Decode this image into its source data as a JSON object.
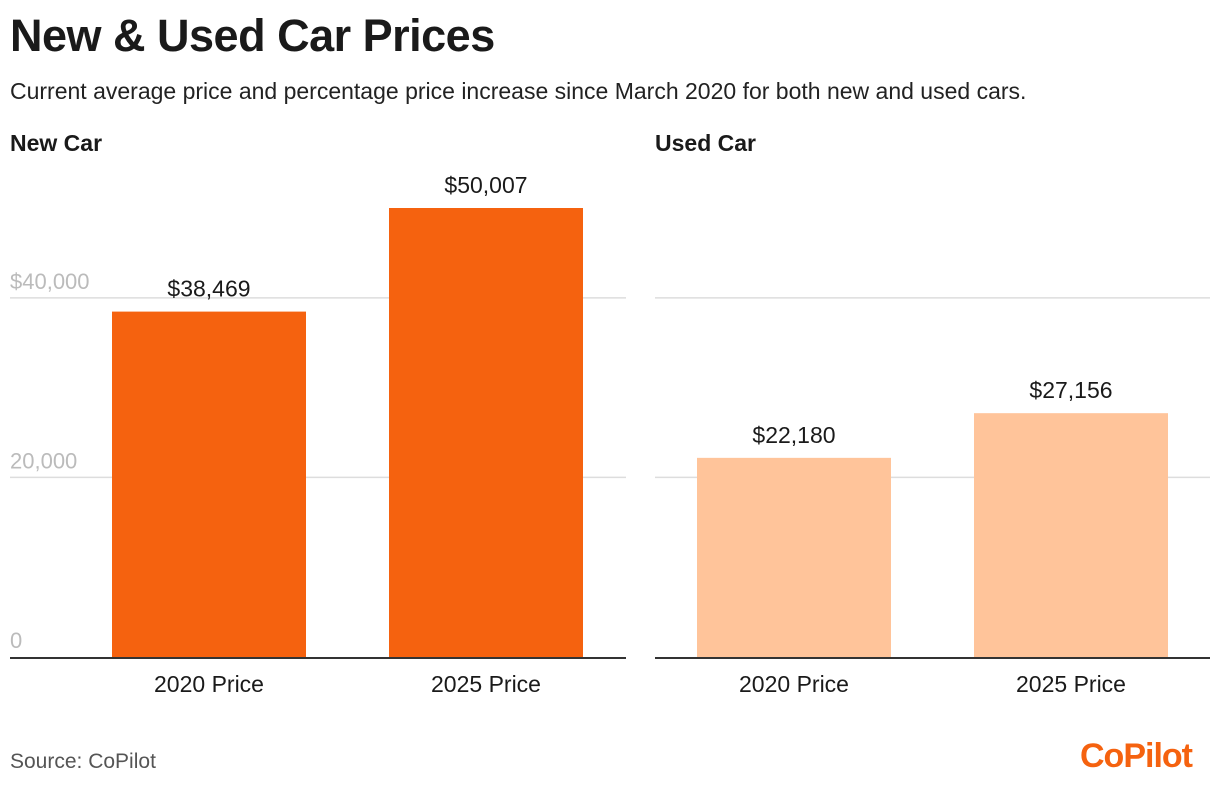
{
  "title": "New & Used Car Prices",
  "subtitle": "Current average price and percentage price increase since March 2020 for both new and used cars.",
  "source": "Source: CoPilot",
  "logo_text": "CoPilot",
  "colors": {
    "new_bar": "#F5620F",
    "used_bar": "#FFC49A",
    "grid": "#dddddd",
    "axis": "#333333",
    "tick": "#bbbbbb",
    "logo": "#F5620F"
  },
  "chart_data": [
    {
      "type": "bar",
      "title": "New Car",
      "categories": [
        "2020 Price",
        "2025 Price"
      ],
      "values": [
        38469,
        50007
      ],
      "value_labels": [
        "$38,469",
        "$50,007"
      ],
      "ylim": [
        0,
        50007
      ],
      "yticks": [
        0,
        20000,
        40000
      ],
      "ytick_labels": [
        "0",
        "20,000",
        "$40,000"
      ],
      "grid": true
    },
    {
      "type": "bar",
      "title": "Used Car",
      "categories": [
        "2020 Price",
        "2025 Price"
      ],
      "values": [
        22180,
        27156
      ],
      "value_labels": [
        "$22,180",
        "$27,156"
      ],
      "ylim": [
        0,
        50007
      ],
      "yticks": [
        0,
        20000,
        40000
      ],
      "grid": true
    }
  ]
}
